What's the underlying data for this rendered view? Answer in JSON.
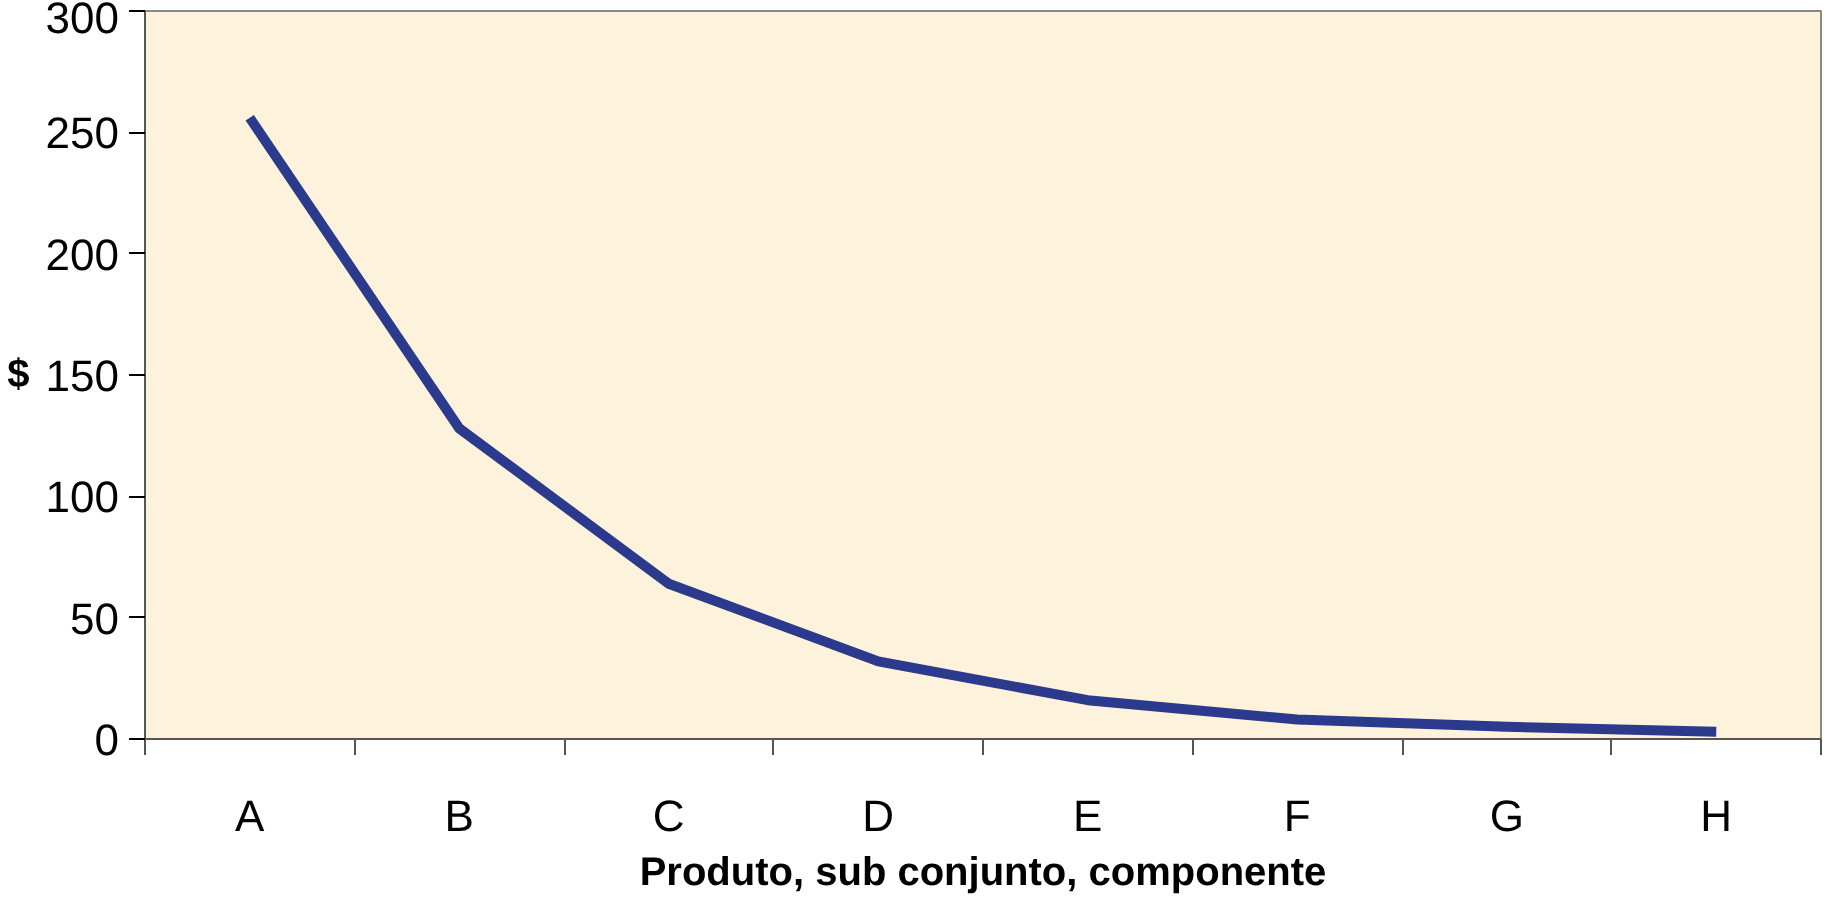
{
  "chart_data": {
    "type": "line",
    "xlabel": "Produto, sub conjunto, componente",
    "ylabel": "$",
    "categories": [
      "A",
      "B",
      "C",
      "D",
      "E",
      "F",
      "G",
      "H"
    ],
    "series": [
      {
        "color": "#2b3a8c",
        "values": [
          256,
          128,
          64,
          32,
          16,
          8,
          5,
          3
        ]
      }
    ],
    "ylim": [
      0,
      300
    ],
    "yticks": [
      0,
      50,
      100,
      150,
      200,
      250,
      300
    ],
    "grid": false,
    "marker": "none",
    "line_style": "solid"
  }
}
